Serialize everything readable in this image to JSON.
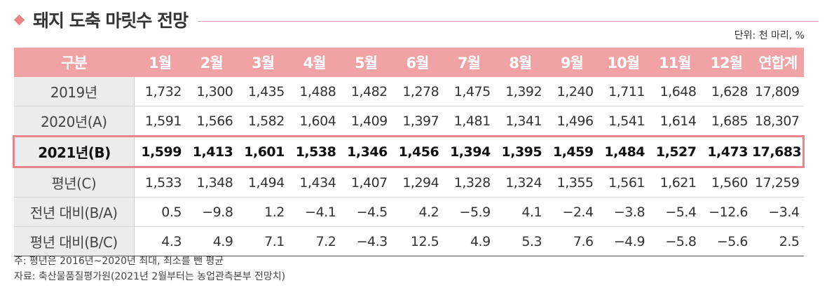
{
  "title": "돼지 도축 마릿수 전망",
  "unit": "단위: 천 마리, %",
  "table": {
    "headers": [
      "구분",
      "1월",
      "2월",
      "3월",
      "4월",
      "5월",
      "6월",
      "7월",
      "8월",
      "9월",
      "10월",
      "11월",
      "12월",
      "연합계"
    ],
    "rows": [
      {
        "label": "2019년",
        "values": [
          "1,732",
          "1,300",
          "1,435",
          "1,488",
          "1,482",
          "1,278",
          "1,475",
          "1,392",
          "1,240",
          "1,711",
          "1,648",
          "1,628",
          "17,809"
        ]
      },
      {
        "label": "2020년(A)",
        "values": [
          "1,591",
          "1,566",
          "1,582",
          "1,604",
          "1,409",
          "1,397",
          "1,481",
          "1,341",
          "1,496",
          "1,541",
          "1,614",
          "1,685",
          "18,307"
        ]
      },
      {
        "label": "2021년(B)",
        "values": [
          "1,599",
          "1,413",
          "1,601",
          "1,538",
          "1,346",
          "1,456",
          "1,394",
          "1,395",
          "1,459",
          "1,484",
          "1,527",
          "1,473",
          "17,683"
        ]
      },
      {
        "label": "평년(C)",
        "values": [
          "1,533",
          "1,348",
          "1,494",
          "1,434",
          "1,407",
          "1,294",
          "1,328",
          "1,324",
          "1,355",
          "1,561",
          "1,621",
          "1,560",
          "17,259"
        ]
      },
      {
        "label": "전년 대비(B/A)",
        "values": [
          "0.5",
          "−9.8",
          "1.2",
          "−4.1",
          "−4.5",
          "4.2",
          "−5.9",
          "4.1",
          "−2.4",
          "−3.8",
          "−5.4",
          "−12.6",
          "−3.4"
        ]
      },
      {
        "label": "평년 대비(B/C)",
        "values": [
          "4.3",
          "4.9",
          "7.1",
          "7.2",
          "−4.3",
          "12.5",
          "4.9",
          "5.3",
          "7.6",
          "−4.9",
          "−5.8",
          "−5.6",
          "2.5"
        ]
      }
    ]
  },
  "notes": {
    "note": "주: 평년은 2016년~2020년 최대, 최소를 뺀 평균",
    "source": "자료: 축산물품질평가원(2021년 2월부터는 농업관측본부 전망치)"
  },
  "colors": {
    "header_bg": "#f0a2a4",
    "highlight_border": "#e9848a",
    "label_bg": "#ececec"
  }
}
